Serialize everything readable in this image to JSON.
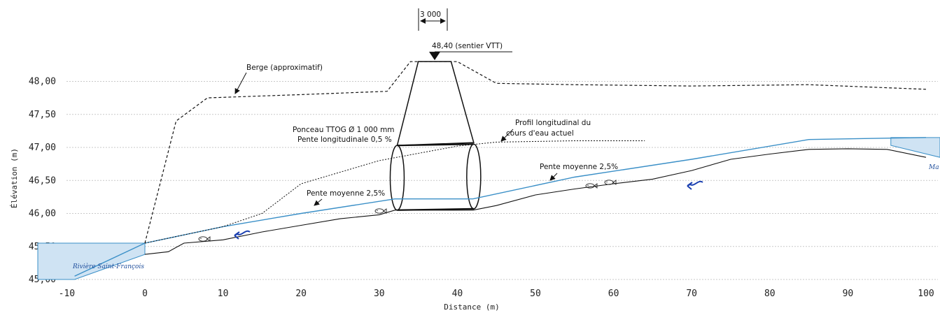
{
  "axes": {
    "x_title": "Distance (m)",
    "y_title": "Élévation (m)",
    "x_ticks": [
      "-10",
      "0",
      "10",
      "20",
      "30",
      "40",
      "50",
      "60",
      "70",
      "80",
      "90",
      "100"
    ],
    "y_ticks": [
      "45,00",
      "45,50",
      "46,00",
      "46,50",
      "47,00",
      "47,50",
      "48,00"
    ]
  },
  "annotations": {
    "width_dim": "3 000",
    "crest": "48,40 (sentier VTT)",
    "bank": "Berge (approximatif)",
    "culvert_line1": "Ponceau TTOG Ø 1 000 mm",
    "culvert_line2": "Pente longitudinale 0,5 %",
    "profile_line1": "Profil longitudinal du",
    "profile_line2": "cours d'eau actuel",
    "slope_left": "Pente moyenne 2,5%",
    "slope_right": "Pente moyenne 2,5%",
    "river_left": "Rivière Saint-François",
    "river_right": "Ma"
  },
  "colors": {
    "water_line": "#3a8fc7",
    "water_fill": "#cfe3f3",
    "flow_arrow": "#1a3fb0",
    "ground": "#111111"
  },
  "chart_data": {
    "type": "line",
    "xlabel": "Distance (m)",
    "ylabel": "Élévation (m)",
    "xlim": [
      -10,
      100
    ],
    "ylim": [
      45.0,
      48.0
    ],
    "grid": true,
    "series": [
      {
        "x": [
          -9,
          0,
          10,
          20,
          32,
          42,
          55,
          70,
          85,
          100
        ],
        "y": [
          45.05,
          45.55,
          45.8,
          46.0,
          46.22,
          46.22,
          46.55,
          46.82,
          47.12,
          47.15
        ]
      },
      {
        "x": [
          0,
          3,
          5,
          10,
          15,
          20,
          25,
          30,
          32,
          42,
          45,
          50,
          55,
          60,
          65,
          70,
          75,
          80,
          85,
          90,
          95,
          100
        ],
        "y": [
          45.38,
          45.42,
          45.55,
          45.6,
          45.72,
          45.82,
          45.92,
          45.98,
          46.05,
          46.05,
          46.12,
          46.28,
          46.37,
          46.45,
          46.52,
          46.65,
          46.82,
          46.9,
          46.97,
          46.98,
          46.97,
          46.85
        ]
      },
      {
        "x": [
          0,
          4,
          8,
          20,
          31,
          34,
          40,
          45,
          55,
          70,
          85,
          100
        ],
        "y": [
          45.55,
          47.4,
          47.75,
          47.8,
          47.85,
          48.3,
          48.3,
          47.97,
          47.95,
          47.93,
          47.95,
          47.88
        ]
      },
      {
        "x": [
          0,
          10,
          15,
          20,
          30,
          40,
          45,
          55,
          64
        ],
        "y": [
          45.55,
          45.8,
          46.0,
          46.45,
          46.8,
          47.02,
          47.08,
          47.1,
          47.1
        ]
      }
    ]
  }
}
